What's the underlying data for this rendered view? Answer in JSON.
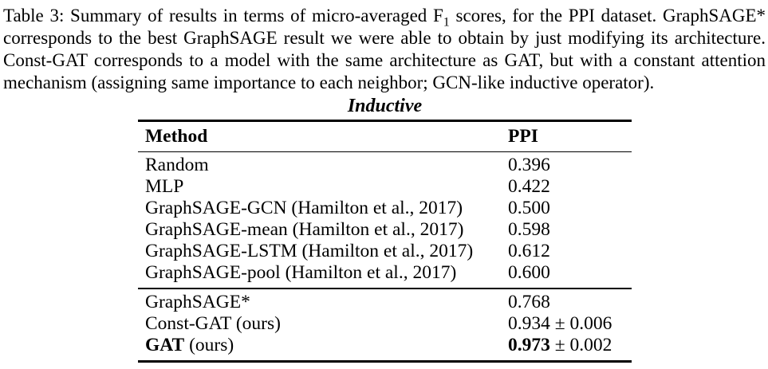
{
  "caption": {
    "line1_before_sub": "Table 3: Summary of results in terms of micro-averaged F",
    "line1_sub": "1",
    "line1_after_sub": " scores, for the PPI dataset. GraphSAGE*",
    "line2": "corresponds to the best GraphSAGE result we were able to obtain by just modifying its architecture.",
    "line3": "Const-GAT corresponds to a model with the same architecture as GAT, but with a constant attention",
    "line4": "mechanism (assigning same importance to each neighbor; GCN-like inductive operator)."
  },
  "table": {
    "title": "Inductive",
    "columns": {
      "method": "Method",
      "value": "PPI"
    },
    "sections": [
      {
        "rows": [
          {
            "method_bold": "",
            "method": "Random",
            "value_bold": "",
            "value": "0.396"
          },
          {
            "method_bold": "",
            "method": "MLP",
            "value_bold": "",
            "value": "0.422"
          },
          {
            "method_bold": "",
            "method": "GraphSAGE-GCN (Hamilton et al., 2017)",
            "value_bold": "",
            "value": "0.500"
          },
          {
            "method_bold": "",
            "method": "GraphSAGE-mean (Hamilton et al., 2017)",
            "value_bold": "",
            "value": "0.598"
          },
          {
            "method_bold": "",
            "method": "GraphSAGE-LSTM (Hamilton et al., 2017)",
            "value_bold": "",
            "value": "0.612"
          },
          {
            "method_bold": "",
            "method": "GraphSAGE-pool (Hamilton et al., 2017)",
            "value_bold": "",
            "value": "0.600"
          }
        ]
      },
      {
        "rows": [
          {
            "method_bold": "",
            "method": "GraphSAGE*",
            "value_bold": "",
            "value": "0.768"
          },
          {
            "method_bold": "",
            "method": "Const-GAT (ours)",
            "value_bold": "",
            "value": "0.934 ± 0.006"
          },
          {
            "method_bold": "GAT",
            "method": " (ours)",
            "value_bold": "0.973",
            "value": " ± 0.002"
          }
        ]
      }
    ]
  }
}
